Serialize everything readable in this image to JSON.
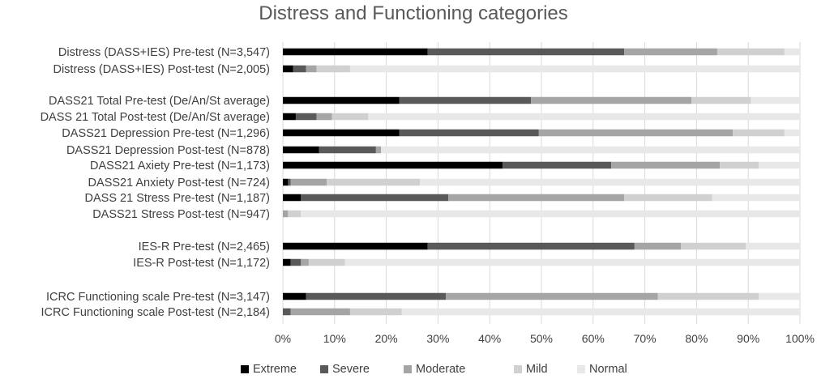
{
  "chart_data": {
    "type": "bar",
    "orientation": "horizontal",
    "stacked": true,
    "percent": true,
    "title": "Distress and Functioning categories",
    "categories": [
      "Distress (DASS+IES) Pre-test (N=3,547)",
      "Distress (DASS+IES) Post-test (N=2,005)",
      "DASS21 Total Pre-test (De/An/St average)",
      "DASS 21 Total  Post-test (De/An/St average)",
      "DASS21 Depression Pre-test (N=1,296)",
      "DASS21 Depression Post-test (N=878)",
      "DASS21 Axiety Pre-test (N=1,173)",
      "DASS21 Anxiety Post-test (N=724)",
      "DASS 21 Stress Pre-test (N=1,187)",
      "DASS21 Stress Post-test (N=947)",
      "IES-R Pre-test (N=2,465)",
      "IES-R Post-test (N=1,172)",
      "ICRC Functioning scale Pre-test (N=3,147)",
      "ICRC Functioning scale Post-test (N=2,184)"
    ],
    "series": [
      {
        "name": "Extreme",
        "color": "#000000",
        "values": [
          28,
          2,
          22.5,
          2.5,
          22.5,
          7,
          42.5,
          1,
          3.5,
          0,
          28,
          1.5,
          4.5,
          0
        ]
      },
      {
        "name": "Severe",
        "color": "#595959",
        "values": [
          38,
          2.5,
          25.5,
          4,
          27,
          11,
          21,
          0.5,
          28.5,
          0,
          40,
          2,
          27,
          1.5
        ]
      },
      {
        "name": "Moderate",
        "color": "#a5a5a5",
        "values": [
          18,
          2,
          31,
          3,
          37.5,
          1,
          21,
          7,
          34,
          1,
          9,
          1.5,
          41,
          11.5
        ]
      },
      {
        "name": "Mild",
        "color": "#d0d0d0",
        "values": [
          13,
          6.5,
          11.5,
          7,
          10,
          0,
          7.5,
          18,
          17,
          2.5,
          12.5,
          7,
          19.5,
          10
        ]
      },
      {
        "name": "Normal",
        "color": "#e8e8e8",
        "values": [
          3,
          87,
          9.5,
          83.5,
          3,
          81,
          8,
          73.5,
          17,
          96.5,
          10.5,
          88,
          8,
          77
        ]
      }
    ],
    "x_ticks": [
      "0%",
      "10%",
      "20%",
      "30%",
      "40%",
      "50%",
      "60%",
      "70%",
      "80%",
      "90%",
      "100%"
    ],
    "xlim": [
      0,
      100
    ],
    "grid": "vertical",
    "legend_position": "bottom"
  }
}
